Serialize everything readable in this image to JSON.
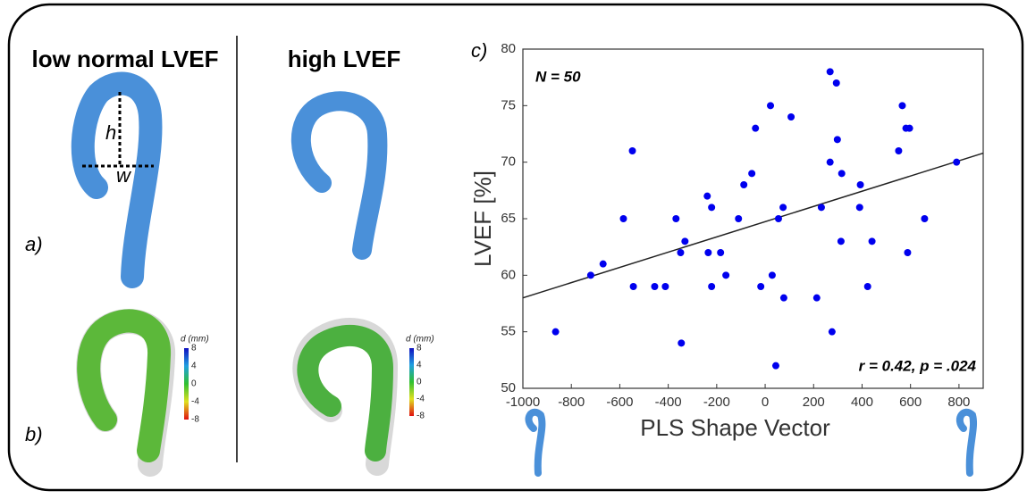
{
  "panels": {
    "left_title": "low normal LVEF",
    "right_title": "high LVEF",
    "label_a": "a)",
    "label_b": "b)",
    "label_c": "c)",
    "h": "h",
    "w": "w"
  },
  "colorbars": [
    {
      "label": "d (mm)",
      "ticks": [
        8,
        4,
        0,
        -4,
        -8
      ]
    },
    {
      "label": "d (mm)",
      "ticks": [
        8,
        4,
        0,
        -4,
        -8
      ]
    }
  ],
  "chart_data": {
    "type": "scatter",
    "xlabel": "PLS Shape Vector",
    "ylabel": "LVEF [%]",
    "annotations": [
      "N = 50",
      "r = 0.42, p = .024"
    ],
    "xlim": [
      -1000,
      900
    ],
    "ylim": [
      50,
      80
    ],
    "xticks": [
      -1000,
      -800,
      -600,
      -400,
      -200,
      0,
      200,
      400,
      600,
      800
    ],
    "yticks": [
      50,
      55,
      60,
      65,
      70,
      75,
      80
    ],
    "color": "#0000ee",
    "fit_line": {
      "x": [
        -1000,
        900
      ],
      "y": [
        58,
        70.8
      ]
    },
    "x": [
      -865,
      -720,
      -669,
      -585,
      -548,
      -544,
      -456,
      -412,
      -368,
      -349,
      -331,
      -346,
      -239,
      -235,
      -221,
      -221,
      -184,
      -162,
      -110,
      -88,
      -55,
      -40,
      -18,
      22,
      29,
      44,
      55,
      74,
      77,
      107,
      213,
      232,
      268,
      268,
      276,
      294,
      298,
      316,
      313,
      390,
      393,
      423,
      441,
      551,
      566,
      581,
      596,
      588,
      658,
      790
    ],
    "y": [
      55,
      60,
      61,
      65,
      71,
      59,
      59,
      59,
      65,
      62,
      63,
      54,
      67,
      62,
      66,
      59,
      62,
      60,
      65,
      68,
      69,
      73,
      59,
      75,
      60,
      52,
      65,
      66,
      58,
      74,
      58,
      66,
      78,
      70,
      55,
      77,
      72,
      69,
      63,
      66,
      68,
      59,
      63,
      71,
      75,
      73,
      73,
      62,
      65,
      70
    ]
  }
}
